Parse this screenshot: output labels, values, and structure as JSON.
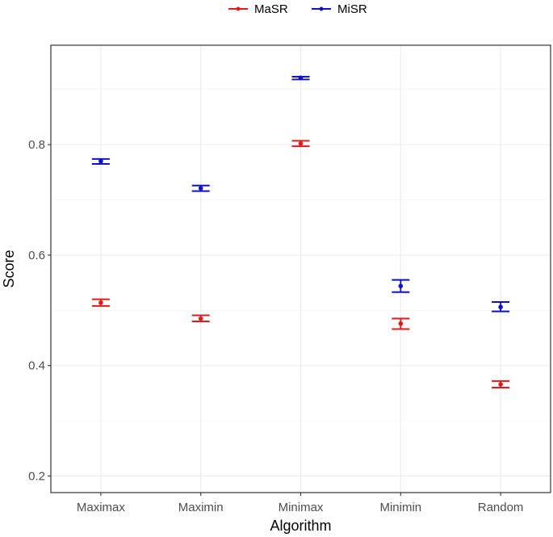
{
  "chart_data": {
    "type": "errorbar",
    "title": "",
    "xlabel": "Algorithm",
    "ylabel": "Score",
    "categories": [
      "Maximax",
      "Maximin",
      "Minimax",
      "Minimin",
      "Random"
    ],
    "ylim": [
      0.17,
      0.98
    ],
    "yticks": [
      0.2,
      0.4,
      0.6,
      0.8
    ],
    "ytick_labels": [
      "0.2",
      "0.4",
      "0.6",
      "0.8"
    ],
    "grid": true,
    "legend_position": "top",
    "series": [
      {
        "name": "MaSR",
        "color": "#e31a1c",
        "values": [
          0.514,
          0.485,
          0.802,
          0.476,
          0.366
        ],
        "lower": [
          0.508,
          0.48,
          0.797,
          0.466,
          0.36
        ],
        "upper": [
          0.52,
          0.491,
          0.807,
          0.485,
          0.372
        ]
      },
      {
        "name": "MiSR",
        "color": "#1010cc",
        "values": [
          0.77,
          0.721,
          0.921,
          0.544,
          0.506
        ],
        "lower": [
          0.765,
          0.716,
          0.918,
          0.533,
          0.498
        ],
        "upper": [
          0.774,
          0.726,
          0.923,
          0.555,
          0.515
        ]
      }
    ]
  }
}
